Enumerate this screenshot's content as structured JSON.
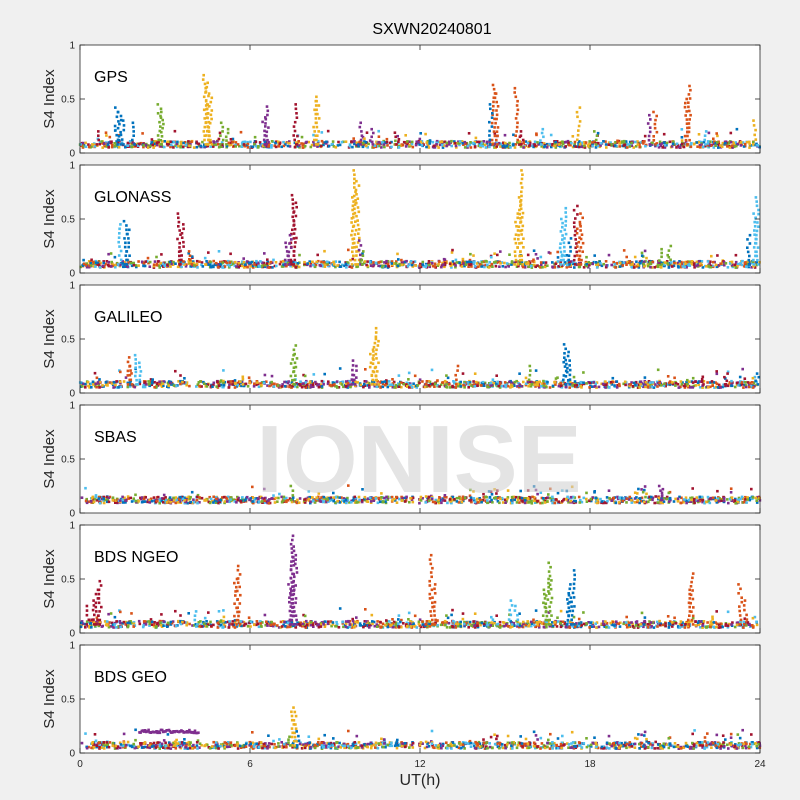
{
  "figure_title": "SXWN20240801",
  "watermark": "IONISE",
  "colors": [
    "#0072BD",
    "#D95319",
    "#EDB120",
    "#7E2F8E",
    "#77AC30",
    "#4DBEEE",
    "#A2142F"
  ],
  "chart_data": [
    {
      "type": "scatter",
      "title": "GPS",
      "ylabel": "S4 Index",
      "xlabel": "",
      "xlim": [
        0,
        24
      ],
      "ylim": [
        0,
        1
      ],
      "yticks": [
        "0",
        "0.5",
        "1"
      ],
      "xticks": [],
      "baseline": 0.08,
      "series": [
        {
          "color": "#D95319",
          "points": [
            [
              14.6,
              0.63
            ],
            [
              14.7,
              0.55
            ],
            [
              15.4,
              0.6
            ],
            [
              21.5,
              0.62
            ],
            [
              21.4,
              0.5
            ],
            [
              20.3,
              0.38
            ]
          ]
        },
        {
          "color": "#EDB120",
          "points": [
            [
              4.4,
              0.72
            ],
            [
              4.5,
              0.65
            ],
            [
              4.6,
              0.55
            ],
            [
              4.5,
              0.45
            ],
            [
              8.3,
              0.52
            ],
            [
              8.4,
              0.48
            ],
            [
              17.6,
              0.42
            ],
            [
              23.8,
              0.3
            ]
          ]
        },
        {
          "color": "#0072BD",
          "points": [
            [
              1.3,
              0.42
            ],
            [
              1.4,
              0.38
            ],
            [
              1.5,
              0.3
            ],
            [
              1.9,
              0.28
            ],
            [
              14.5,
              0.45
            ]
          ]
        },
        {
          "color": "#7E2F8E",
          "points": [
            [
              6.6,
              0.43
            ],
            [
              6.5,
              0.33
            ],
            [
              9.9,
              0.28
            ],
            [
              10.3,
              0.22
            ],
            [
              20.1,
              0.35
            ]
          ]
        },
        {
          "color": "#77AC30",
          "points": [
            [
              2.8,
              0.45
            ],
            [
              2.9,
              0.38
            ],
            [
              5.0,
              0.28
            ],
            [
              5.2,
              0.22
            ],
            [
              18.2,
              0.2
            ]
          ]
        },
        {
          "color": "#A2142F",
          "points": [
            [
              7.6,
              0.45
            ],
            [
              0.6,
              0.2
            ],
            [
              11.2,
              0.15
            ],
            [
              15.6,
              0.2
            ]
          ]
        },
        {
          "color": "#4DBEEE",
          "points": [
            [
              16.3,
              0.22
            ],
            [
              22.1,
              0.2
            ]
          ]
        }
      ]
    },
    {
      "type": "scatter",
      "title": "GLONASS",
      "ylabel": "S4 Index",
      "xlabel": "",
      "xlim": [
        0,
        24
      ],
      "ylim": [
        0,
        1
      ],
      "yticks": [
        "0",
        "0.5",
        "1"
      ],
      "xticks": [],
      "baseline": 0.08,
      "series": [
        {
          "color": "#EDB120",
          "points": [
            [
              9.7,
              0.95
            ],
            [
              9.8,
              0.85
            ],
            [
              9.6,
              0.7
            ],
            [
              15.6,
              0.95
            ],
            [
              15.5,
              0.7
            ],
            [
              15.4,
              0.55
            ]
          ]
        },
        {
          "color": "#A2142F",
          "points": [
            [
              7.5,
              0.72
            ],
            [
              7.6,
              0.65
            ],
            [
              3.5,
              0.55
            ],
            [
              3.6,
              0.45
            ],
            [
              17.5,
              0.62
            ]
          ]
        },
        {
          "color": "#4DBEEE",
          "points": [
            [
              23.9,
              0.7
            ],
            [
              23.8,
              0.55
            ],
            [
              17.1,
              0.6
            ],
            [
              17.0,
              0.5
            ],
            [
              1.4,
              0.45
            ]
          ]
        },
        {
          "color": "#0072BD",
          "points": [
            [
              1.6,
              0.48
            ],
            [
              1.7,
              0.4
            ],
            [
              17.3,
              0.32
            ],
            [
              23.6,
              0.35
            ]
          ]
        },
        {
          "color": "#7E2F8E",
          "points": [
            [
              7.4,
              0.35
            ],
            [
              7.3,
              0.28
            ],
            [
              9.9,
              0.3
            ]
          ]
        },
        {
          "color": "#D95319",
          "points": [
            [
              17.7,
              0.55
            ],
            [
              17.6,
              0.45
            ],
            [
              3.9,
              0.2
            ]
          ]
        },
        {
          "color": "#77AC30",
          "points": [
            [
              20.5,
              0.22
            ],
            [
              20.8,
              0.25
            ],
            [
              10.0,
              0.2
            ]
          ]
        }
      ]
    },
    {
      "type": "scatter",
      "title": "GALILEO",
      "ylabel": "S4 Index",
      "xlabel": "",
      "xlim": [
        0,
        24
      ],
      "ylim": [
        0,
        1
      ],
      "yticks": [
        "0",
        "0.5",
        "1"
      ],
      "xticks": [],
      "baseline": 0.08,
      "series": [
        {
          "color": "#EDB120",
          "points": [
            [
              10.5,
              0.6
            ],
            [
              10.4,
              0.5
            ],
            [
              10.3,
              0.4
            ],
            [
              5.7,
              0.15
            ]
          ]
        },
        {
          "color": "#0072BD",
          "points": [
            [
              17.1,
              0.45
            ],
            [
              17.2,
              0.38
            ],
            [
              17.3,
              0.3
            ],
            [
              23.9,
              0.18
            ]
          ]
        },
        {
          "color": "#77AC30",
          "points": [
            [
              7.6,
              0.44
            ],
            [
              7.5,
              0.35
            ],
            [
              15.9,
              0.25
            ]
          ]
        },
        {
          "color": "#D95319",
          "points": [
            [
              1.7,
              0.33
            ],
            [
              1.8,
              0.25
            ],
            [
              13.3,
              0.25
            ]
          ]
        },
        {
          "color": "#4DBEEE",
          "points": [
            [
              2.0,
              0.35
            ],
            [
              2.1,
              0.28
            ]
          ]
        },
        {
          "color": "#7E2F8E",
          "points": [
            [
              9.6,
              0.3
            ],
            [
              9.7,
              0.25
            ]
          ]
        },
        {
          "color": "#A2142F",
          "points": [
            [
              22.8,
              0.18
            ],
            [
              22.0,
              0.15
            ]
          ]
        }
      ]
    },
    {
      "type": "scatter",
      "title": "SBAS",
      "ylabel": "S4 Index",
      "xlabel": "",
      "xlim": [
        0,
        24
      ],
      "ylim": [
        0,
        1
      ],
      "yticks": [
        "0",
        "0.5",
        "1"
      ],
      "xticks": [],
      "baseline": 0.12,
      "series": [
        {
          "color": "#77AC30",
          "points": [
            [
              7.5,
              0.25
            ]
          ]
        },
        {
          "color": "#7E2F8E",
          "points": [
            [
              20.5,
              0.25
            ],
            [
              20.6,
              0.22
            ]
          ]
        },
        {
          "color": "#0072BD",
          "points": [
            [
              14.5,
              0.2
            ]
          ]
        }
      ]
    },
    {
      "type": "scatter",
      "title": "BDS NGEO",
      "ylabel": "S4 Index",
      "xlabel": "",
      "xlim": [
        0,
        24
      ],
      "ylim": [
        0,
        1
      ],
      "yticks": [
        "0",
        "0.5",
        "1"
      ],
      "xticks": [],
      "baseline": 0.08,
      "series": [
        {
          "color": "#7E2F8E",
          "points": [
            [
              7.5,
              0.9
            ],
            [
              7.6,
              0.8
            ],
            [
              7.5,
              0.7
            ],
            [
              7.4,
              0.45
            ]
          ]
        },
        {
          "color": "#D95319",
          "points": [
            [
              12.4,
              0.72
            ],
            [
              5.6,
              0.62
            ],
            [
              5.5,
              0.5
            ],
            [
              12.5,
              0.45
            ],
            [
              21.6,
              0.55
            ],
            [
              21.5,
              0.4
            ],
            [
              23.3,
              0.45
            ],
            [
              23.5,
              0.3
            ]
          ]
        },
        {
          "color": "#77AC30",
          "points": [
            [
              16.6,
              0.65
            ],
            [
              16.5,
              0.5
            ],
            [
              16.4,
              0.4
            ]
          ]
        },
        {
          "color": "#0072BD",
          "points": [
            [
              17.4,
              0.58
            ],
            [
              17.3,
              0.45
            ],
            [
              17.2,
              0.35
            ]
          ]
        },
        {
          "color": "#A2142F",
          "points": [
            [
              0.7,
              0.48
            ],
            [
              0.6,
              0.4
            ],
            [
              0.5,
              0.3
            ],
            [
              0.3,
              0.25
            ]
          ]
        },
        {
          "color": "#4DBEEE",
          "points": [
            [
              15.2,
              0.3
            ],
            [
              15.4,
              0.25
            ],
            [
              4.1,
              0.2
            ]
          ]
        },
        {
          "color": "#EDB120",
          "points": [
            [
              22.3,
              0.15
            ]
          ]
        }
      ]
    },
    {
      "type": "scatter",
      "title": "BDS GEO",
      "ylabel": "S4 Index",
      "xlabel": "UT(h)",
      "xlim": [
        0,
        24
      ],
      "ylim": [
        0,
        1
      ],
      "yticks": [
        "0",
        "0.5",
        "1"
      ],
      "xticks": [
        "0",
        "6",
        "12",
        "18",
        "24"
      ],
      "baseline": 0.07,
      "band": {
        "color": "#7E2F8E",
        "x0": 2.1,
        "x1": 4.2,
        "y": 0.2
      },
      "series": [
        {
          "color": "#EDB120",
          "points": [
            [
              7.5,
              0.42
            ],
            [
              7.6,
              0.38
            ],
            [
              3.4,
              0.12
            ]
          ]
        },
        {
          "color": "#0072BD",
          "points": [
            [
              7.7,
              0.2
            ],
            [
              11.2,
              0.12
            ]
          ]
        },
        {
          "color": "#D95319",
          "points": [
            [
              22.1,
              0.18
            ],
            [
              14.0,
              0.1
            ]
          ]
        },
        {
          "color": "#77AC30",
          "points": [
            [
              7.4,
              0.15
            ]
          ]
        }
      ]
    }
  ]
}
